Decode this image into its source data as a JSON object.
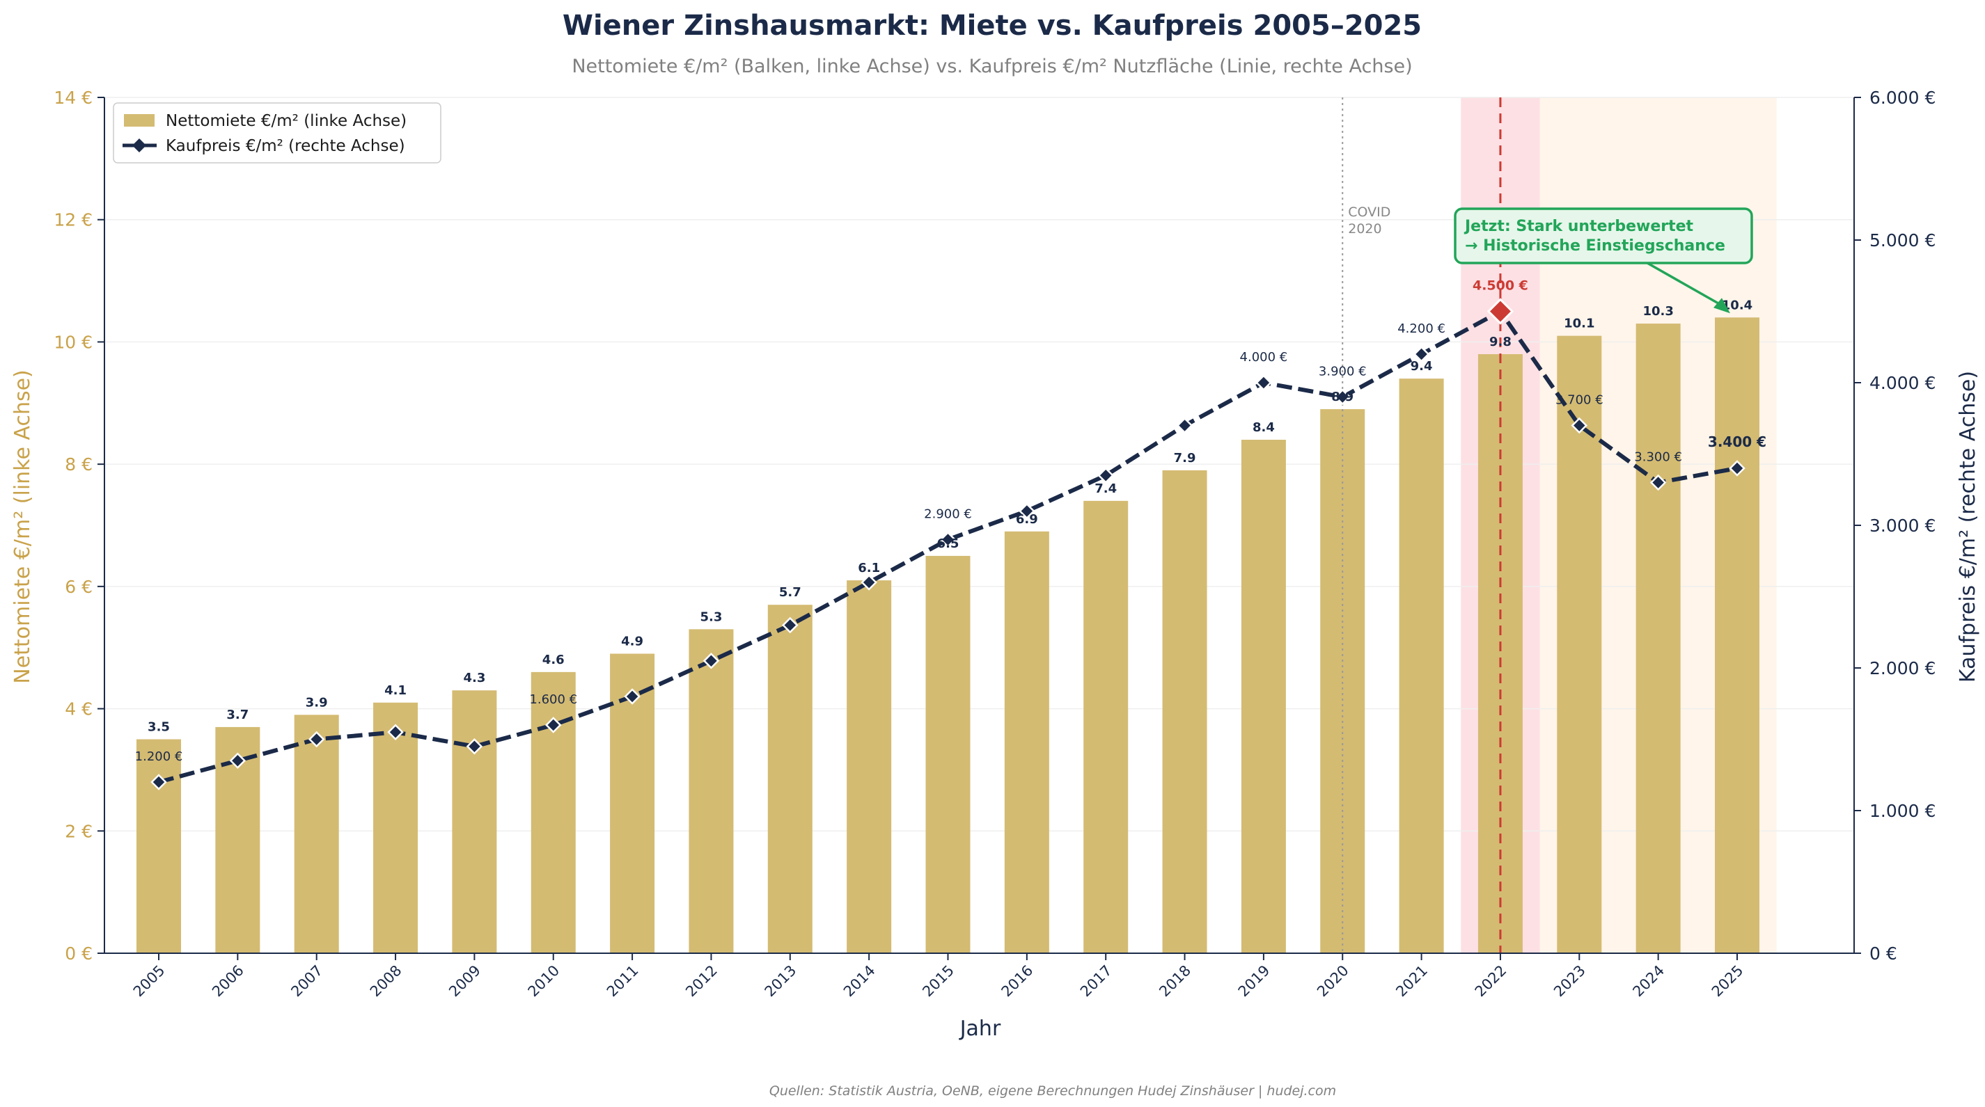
{
  "chart_data": {
    "type": "bar",
    "title": "Wiener Zinshausmarkt: Miete vs. Kaufpreis 2005–2025",
    "subtitle": "Nettomiete €/m² (Balken, linke Achse) vs. Kaufpreis €/m² Nutzfläche (Linie, rechte Achse)",
    "xlabel": "Jahr",
    "ylabel_left": "Nettomiete €/m² (linke Achse)",
    "ylabel_right": "Kaufpreis €/m² (rechte Achse)",
    "ylim_left": [
      0,
      14
    ],
    "ylim_right": [
      0,
      6000
    ],
    "yticks_left": [
      "0 €",
      "2 €",
      "4 €",
      "6 €",
      "8 €",
      "10 €",
      "12 €",
      "14 €"
    ],
    "yticks_right": [
      "0 €",
      "1.000 €",
      "2.000 €",
      "3.000 €",
      "4.000 €",
      "5.000 €",
      "6.000 €"
    ],
    "categories": [
      "2005",
      "2006",
      "2007",
      "2008",
      "2009",
      "2010",
      "2011",
      "2012",
      "2013",
      "2014",
      "2015",
      "2016",
      "2017",
      "2018",
      "2019",
      "2020",
      "2021",
      "2022",
      "2023",
      "2024",
      "2025"
    ],
    "series": [
      {
        "name": "Nettomiete €/m² (linke Achse)",
        "kind": "bar",
        "axis": "left",
        "values": [
          3.5,
          3.7,
          3.9,
          4.1,
          4.3,
          4.6,
          4.9,
          5.3,
          5.7,
          6.1,
          6.5,
          6.9,
          7.4,
          7.9,
          8.4,
          8.9,
          9.4,
          9.8,
          10.1,
          10.3,
          10.4
        ],
        "labels": [
          "3.5",
          "3.7",
          "3.9",
          "4.1",
          "4.3",
          "4.6",
          "4.9",
          "5.3",
          "5.7",
          "6.1",
          "6.5",
          "6.9",
          "7.4",
          "7.9",
          "8.4",
          "8.9",
          "9.4",
          "9.8",
          "10.1",
          "10.3",
          "10.4"
        ]
      },
      {
        "name": "Kaufpreis €/m² (rechte Achse)",
        "kind": "line",
        "axis": "right",
        "values": [
          1200,
          1350,
          1500,
          1550,
          1450,
          1600,
          1800,
          2050,
          2300,
          2600,
          2900,
          3100,
          3350,
          3700,
          4000,
          3900,
          4200,
          4500,
          3700,
          3300,
          3400
        ],
        "point_labels": [
          {
            "year": "2005",
            "text": "1.200 €"
          },
          {
            "year": "2010",
            "text": "1.600 €"
          },
          {
            "year": "2015",
            "text": "2.900 €"
          },
          {
            "year": "2019",
            "text": "4.000 €"
          },
          {
            "year": "2020",
            "text": "3.900 €"
          },
          {
            "year": "2021",
            "text": "4.200 €"
          },
          {
            "year": "2022",
            "text": "4.500 €",
            "highlight": true
          },
          {
            "year": "2023",
            "text": "3.700 €"
          },
          {
            "year": "2024",
            "text": "3.300 €"
          },
          {
            "year": "2025",
            "text": "3.400 €",
            "bold": true
          }
        ]
      }
    ],
    "annotations": {
      "covid": {
        "year": "2020",
        "text_line1": "COVID",
        "text_line2": "2020"
      },
      "peak_year": "2022",
      "callout": {
        "line1": "Jetzt: Stark unterbewertet",
        "line2": "→ Historische Einstiegschance",
        "target_year": "2025"
      }
    },
    "legend_position": "top-left",
    "grid": true,
    "colors": {
      "bar": "#d4bb72",
      "line": "#1b2a48",
      "left_axis": "#c9a24a",
      "right_axis": "#1b2a48",
      "peak": "#cc3b33",
      "peak_band": "#fde0e4",
      "future_band": "#fff5ea",
      "callout": "#22a559",
      "callout_bg": "#e6f6ea"
    }
  },
  "footer": {
    "source": "Quellen: Statistik Austria, OeNB, eigene Berechnungen Hudej Zinshäuser  |  hudej.com"
  }
}
